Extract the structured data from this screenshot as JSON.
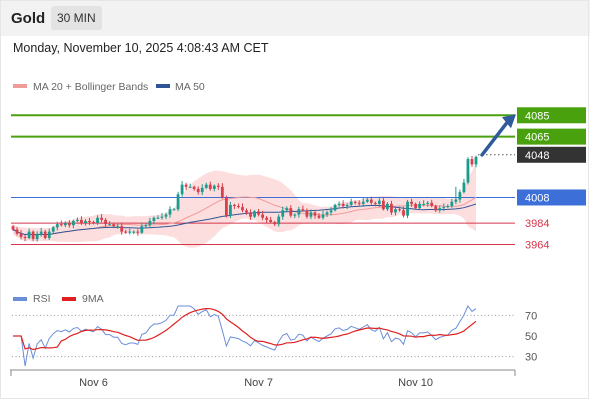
{
  "header": {
    "title": "Gold",
    "timeframe": "30 MIN"
  },
  "datetime": "Monday, November 10, 2025 4:08:43 AM CET",
  "colors": {
    "resistance": "#4aa10e",
    "pivot": "#3c6fd8",
    "support": "#d5364b",
    "current": "#333333",
    "bullish": "#1a9b8e",
    "bearish": "#d63f4c",
    "bollinger": "#fbd8d8",
    "ma20": "#f19a9a",
    "ma50": "#2f5597",
    "rsi": "#6b8ed8",
    "rsi_ma": "#e02020",
    "arrow": "#2f5b9c"
  },
  "chart_data": [
    {
      "type": "candlestick",
      "title": "",
      "legend": [
        {
          "name": "MA 20 + Bollinger Bands",
          "color": "#f19a9a"
        },
        {
          "name": "MA 50",
          "color": "#2f5597"
        }
      ],
      "legend_position": "top-left",
      "grid": false,
      "x_ticks": [
        "Nov 6",
        "Nov 7",
        "Nov 10"
      ],
      "ylim": [
        3926,
        4104
      ],
      "close": [
        3978,
        3974,
        3971,
        3970,
        3976,
        3969,
        3974,
        3976,
        3970,
        3976,
        3980,
        3983,
        3982,
        3984,
        3982,
        3986,
        3987,
        3984,
        3986,
        3985,
        3984,
        3989,
        3987,
        3983,
        3983,
        3981,
        3981,
        3976,
        3975,
        3976,
        3976,
        3975,
        3981,
        3982,
        3986,
        3989,
        3989,
        3990,
        3992,
        3997,
        3997,
        4011,
        4020,
        4018,
        4018,
        4016,
        4013,
        4017,
        4020,
        4016,
        4019,
        4018,
        4008,
        3991,
        4001,
        4000,
        3999,
        3996,
        3994,
        3990,
        3995,
        3992,
        3989,
        3987,
        3985,
        3983,
        3990,
        3996,
        3998,
        3991,
        3992,
        3997,
        3996,
        3990,
        3994,
        3991,
        3989,
        3992,
        3994,
        3996,
        4001,
        4002,
        4000,
        4001,
        4004,
        4003,
        4002,
        4004,
        4006,
        4003,
        4002,
        4005,
        3997,
        4002,
        3994,
        3997,
        3996,
        3991,
        4004,
        4002,
        3998,
        4002,
        4002,
        4003,
        4000,
        3996,
        3998,
        3999,
        4000,
        4004,
        4006,
        4013,
        4022,
        4044,
        4039,
        4046
      ],
      "lines": [
        {
          "label": "4085",
          "value": 4085,
          "kind": "resistance"
        },
        {
          "label": "4065",
          "value": 4065,
          "kind": "resistance"
        },
        {
          "label": "4048",
          "value": 4048,
          "kind": "current"
        },
        {
          "label": "4008",
          "value": 4008,
          "kind": "pivot"
        },
        {
          "label": "3984",
          "value": 3984,
          "kind": "support"
        },
        {
          "label": "3964",
          "value": 3964,
          "kind": "support"
        }
      ],
      "arrow": {
        "direction": "up",
        "target": 4085
      }
    },
    {
      "type": "line",
      "title": "",
      "legend": [
        {
          "name": "RSI",
          "color": "#6b8ed8"
        },
        {
          "name": "9MA",
          "color": "#e02020"
        }
      ],
      "legend_position": "top-left",
      "ylim": [
        20,
        80
      ],
      "y_ticks": [
        70,
        50,
        30
      ],
      "series": [
        {
          "name": "RSI"
        },
        {
          "name": "9MA"
        }
      ]
    }
  ]
}
